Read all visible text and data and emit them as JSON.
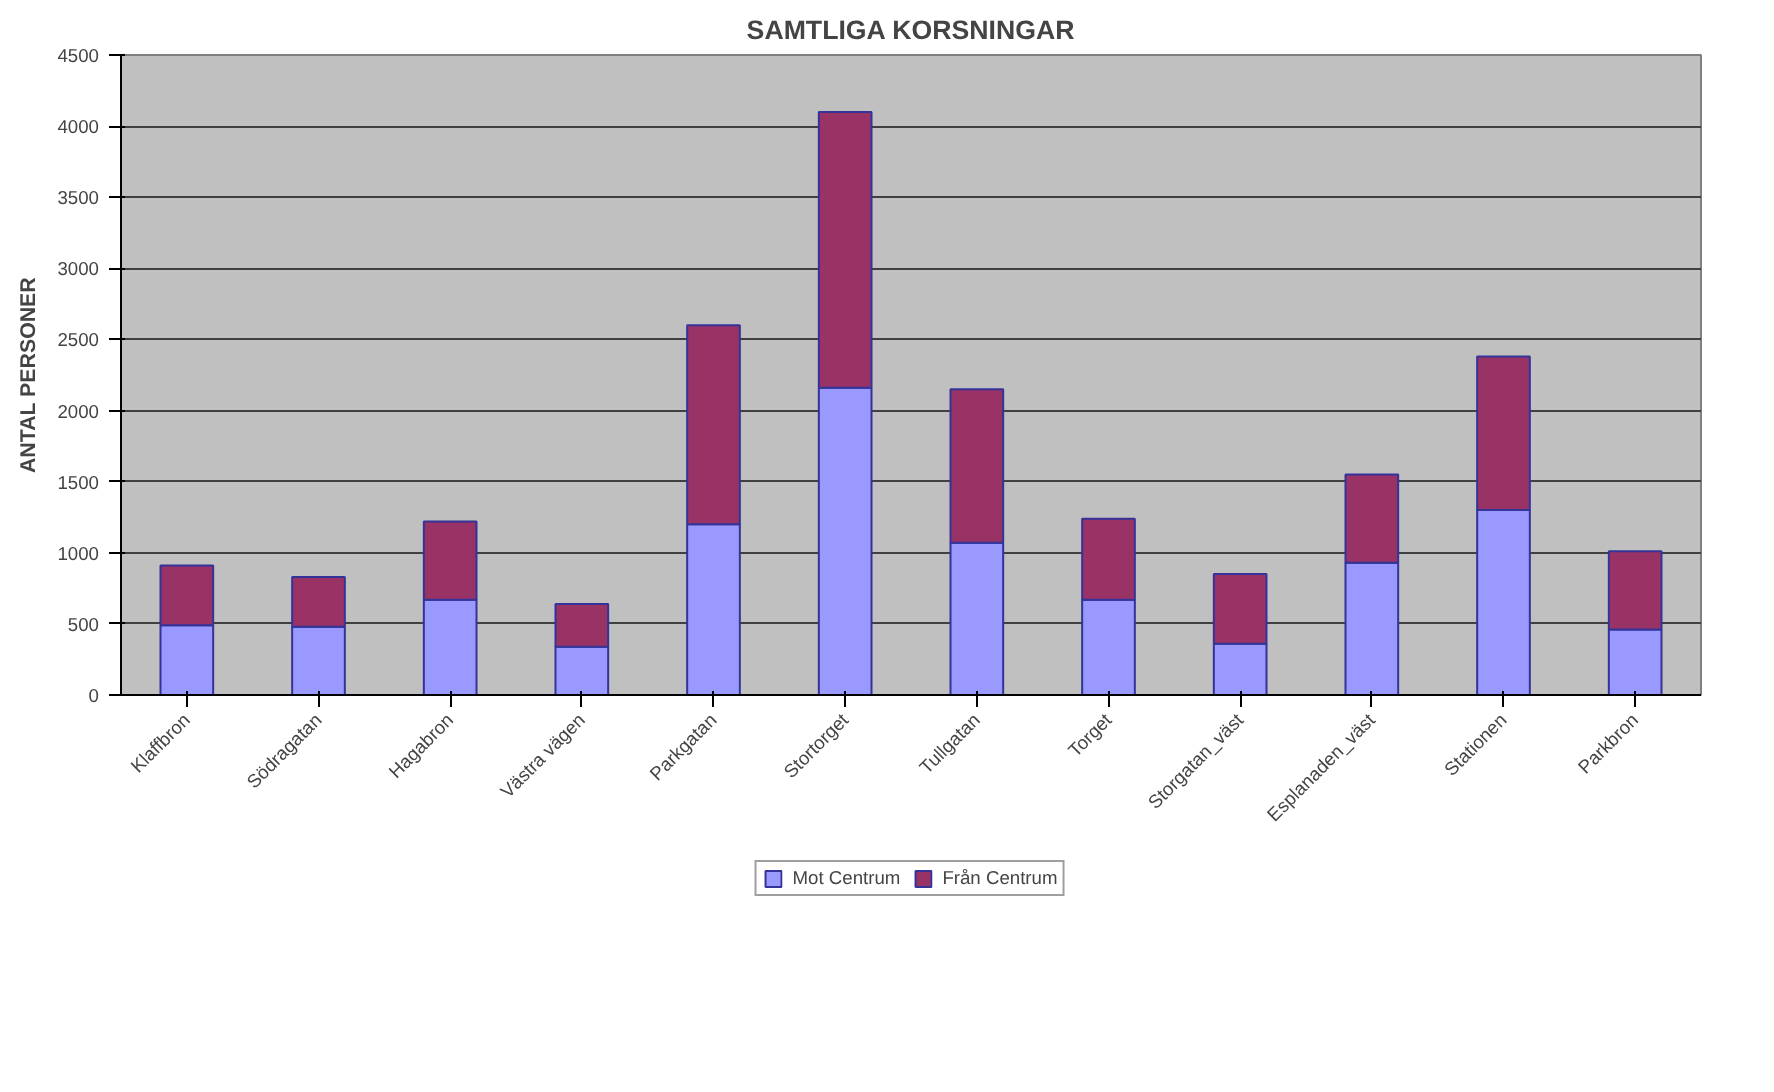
{
  "chart_data": {
    "type": "bar",
    "title": "SAMTLIGA KORSNINGAR",
    "ylabel": "ANTAL PERSONER",
    "stacked": true,
    "categories": [
      "Klaffbron",
      "Södragatan",
      "Hagabron",
      "Västra vägen",
      "Parkgatan",
      "Stortorget",
      "Tullgatan",
      "Torget",
      "Storgatan_väst",
      "Esplanaden_väst",
      "Stationen",
      "Parkbron"
    ],
    "series": [
      {
        "name": "Mot Centrum",
        "color": "#9999ff",
        "values": [
          490,
          480,
          670,
          340,
          1200,
          2160,
          1070,
          670,
          360,
          930,
          1300,
          460
        ]
      },
      {
        "name": "Från Centrum",
        "color": "#993366",
        "values": [
          420,
          350,
          550,
          300,
          1400,
          1940,
          1080,
          570,
          490,
          620,
          1080,
          550
        ]
      }
    ],
    "ylim": [
      0,
      4500
    ],
    "yticks": [
      0,
      500,
      1000,
      1500,
      2000,
      2500,
      3000,
      3500,
      4000,
      4500
    ],
    "grid": "y",
    "legend": "bottom"
  }
}
